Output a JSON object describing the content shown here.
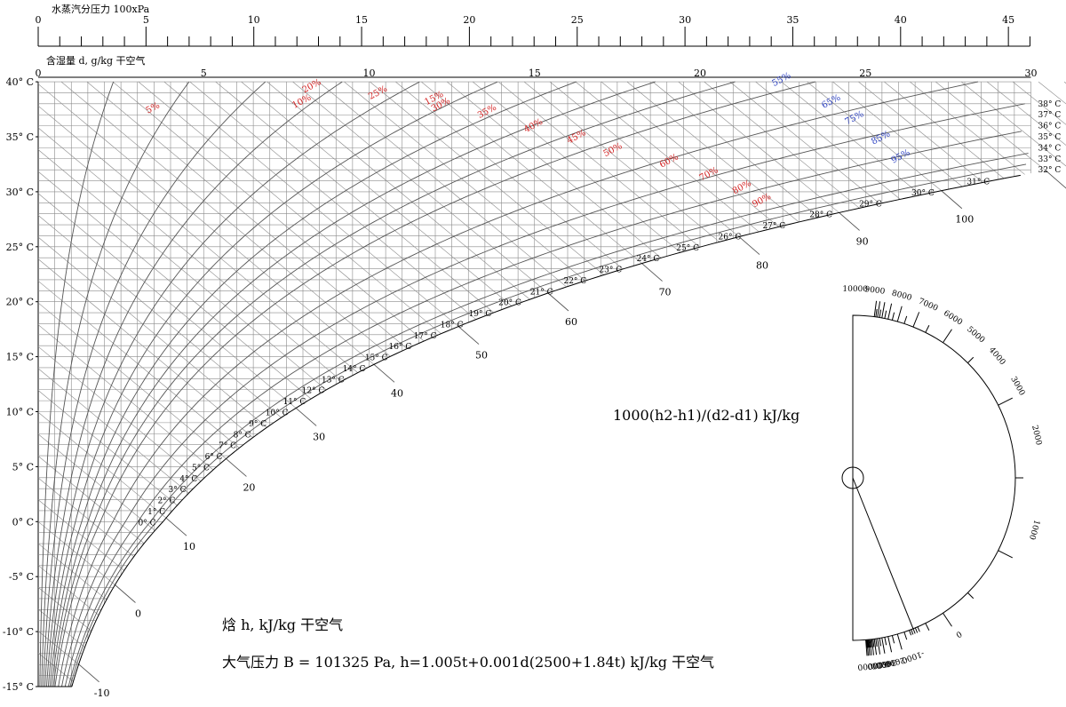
{
  "chart_data": {
    "type": "psychrometric",
    "pressure_scale": {
      "label": "水蒸汽分压力 100xPa",
      "min": 0,
      "max": 46,
      "tick_labels": [
        "0",
        "5",
        "10",
        "15",
        "20",
        "25",
        "30",
        "35",
        "40",
        "45"
      ]
    },
    "d_axis": {
      "label": "含湿量 d, g/kg 干空气",
      "min": 0,
      "max": 30,
      "tick_labels": [
        "0",
        "5",
        "10",
        "15",
        "20",
        "25",
        "30"
      ]
    },
    "t_axis": {
      "min": -15,
      "max": 40,
      "tick_labels": [
        "-15° C",
        "-10° C",
        "-5° C",
        "0° C",
        "5° C",
        "10° C",
        "15° C",
        "20° C",
        "25° C",
        "30° C",
        "35° C",
        "40° C"
      ]
    },
    "rh_curves": [
      5,
      10,
      15,
      20,
      25,
      30,
      35,
      40,
      45,
      50,
      60,
      70,
      80,
      90,
      95
    ],
    "rh_labels": [
      {
        "text": "5%",
        "color": "red",
        "d": 3.5,
        "t": 37.4
      },
      {
        "text": "10%",
        "color": "red",
        "d": 8.0,
        "t": 38.0
      },
      {
        "text": "15%",
        "color": "red",
        "d": 12.0,
        "t": 38.3
      },
      {
        "text": "20%",
        "color": "red",
        "d": 8.3,
        "t": 39.4
      },
      {
        "text": "25%",
        "color": "red",
        "d": 10.3,
        "t": 38.8
      },
      {
        "text": "30%",
        "color": "red",
        "d": 12.2,
        "t": 37.7
      },
      {
        "text": "35%",
        "color": "red",
        "d": 13.6,
        "t": 37.1
      },
      {
        "text": "40%",
        "color": "red",
        "d": 15.0,
        "t": 35.8
      },
      {
        "text": "45%",
        "color": "red",
        "d": 16.3,
        "t": 34.8
      },
      {
        "text": "50%",
        "color": "red",
        "d": 17.4,
        "t": 33.6
      },
      {
        "text": "60%",
        "color": "red",
        "d": 19.1,
        "t": 32.6
      },
      {
        "text": "70%",
        "color": "red",
        "d": 20.3,
        "t": 31.4
      },
      {
        "text": "80%",
        "color": "red",
        "d": 21.3,
        "t": 30.2
      },
      {
        "text": "90%",
        "color": "red",
        "d": 21.9,
        "t": 29.0
      },
      {
        "text": "55%",
        "color": "blue",
        "d": 22.5,
        "t": 40.0
      },
      {
        "text": "65%",
        "color": "blue",
        "d": 24.0,
        "t": 38.0
      },
      {
        "text": "75%",
        "color": "blue",
        "d": 24.7,
        "t": 36.5
      },
      {
        "text": "85%",
        "color": "blue",
        "d": 25.5,
        "t": 34.7
      },
      {
        "text": "95%",
        "color": "blue",
        "d": 26.1,
        "t": 33.0
      }
    ],
    "saturation_labels": [
      "0° C",
      "1° C",
      "2° C",
      "3° C",
      "4° C",
      "5° C",
      "6° C",
      "7° C",
      "8° C",
      "9° C",
      "10° C",
      "11° C",
      "12° C",
      "13° C",
      "14° C",
      "15° C",
      "16° C",
      "17° C",
      "18° C",
      "19° C",
      "20° C",
      "21° C",
      "22° C",
      "23° C",
      "24° C",
      "25° C",
      "26° C",
      "27° C",
      "28° C",
      "29° C",
      "30° C",
      "31° C",
      "32° C",
      "33° C",
      "34° C",
      "35° C",
      "36° C",
      "37° C",
      "38° C"
    ],
    "enthalpy_labels": [
      "-10",
      "0",
      "10",
      "20",
      "30",
      "40",
      "50",
      "60",
      "70",
      "80",
      "90",
      "100"
    ],
    "protractor": {
      "title": "1000(h2-h1)/(d2-d1) kJ/kg",
      "labels": [
        {
          "text": "10000",
          "angle": 89.26
        },
        {
          "text": "9000",
          "angle": 83.29
        },
        {
          "text": "8000",
          "angle": 74.96
        },
        {
          "text": "7000",
          "angle": 66.44
        },
        {
          "text": "6000",
          "angle": 57.94
        },
        {
          "text": "5000",
          "angle": 49.33
        },
        {
          "text": "4000",
          "angle": 40.15
        },
        {
          "text": "3000",
          "angle": 29.11
        },
        {
          "text": "2000",
          "angle": 13.06
        },
        {
          "text": "1000",
          "angle": -15.96
        },
        {
          "text": "0",
          "angle": -55.91
        },
        {
          "text": "-1000",
          "angle": -71.4
        },
        {
          "text": "-2000",
          "angle": -76.69
        },
        {
          "text": "-3000",
          "angle": -79.37
        },
        {
          "text": "-4000",
          "angle": -80.99
        },
        {
          "text": "-5000",
          "angle": -82.08
        },
        {
          "text": "-10000",
          "angle": -84.28
        }
      ],
      "needle_value": "0"
    },
    "notes": {
      "enthalpy": "焓 h, kJ/kg 干空气",
      "formula": "大气压力 B = 101325 Pa, h=1.005t+0.001d(2500+1.84t) kJ/kg 干空气"
    }
  }
}
